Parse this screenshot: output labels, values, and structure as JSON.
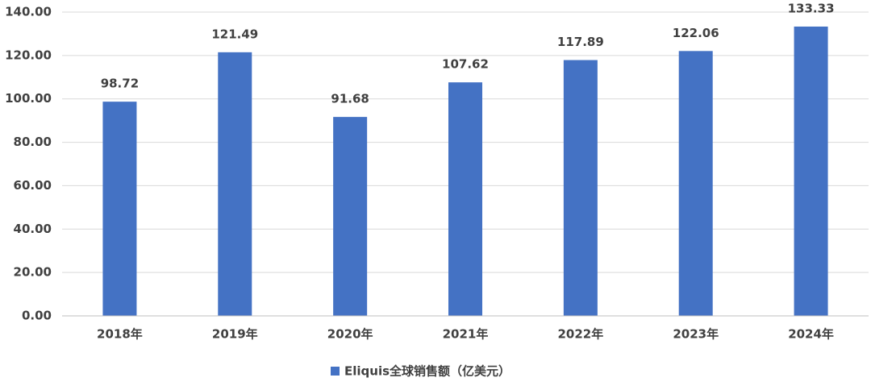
{
  "chart_data": {
    "type": "bar",
    "categories": [
      "2018年",
      "2019年",
      "2020年",
      "2021年",
      "2022年",
      "2023年",
      "2024年"
    ],
    "series": [
      {
        "name": "Eliquis全球销售额（亿美元）",
        "color": "#4472c4",
        "values": [
          98.72,
          121.49,
          91.68,
          107.62,
          117.89,
          122.06,
          133.33
        ]
      }
    ],
    "ylim": [
      0,
      140
    ],
    "yticks": [
      {
        "value": 0,
        "label": "0.00"
      },
      {
        "value": 20,
        "label": "20.00"
      },
      {
        "value": 40,
        "label": "40.00"
      },
      {
        "value": 60,
        "label": "60.00"
      },
      {
        "value": 80,
        "label": "80.00"
      },
      {
        "value": 100,
        "label": "100.00"
      },
      {
        "value": 120,
        "label": "120.00"
      },
      {
        "value": 140,
        "label": "140.00"
      }
    ],
    "grid": true,
    "legend": "bottom"
  }
}
